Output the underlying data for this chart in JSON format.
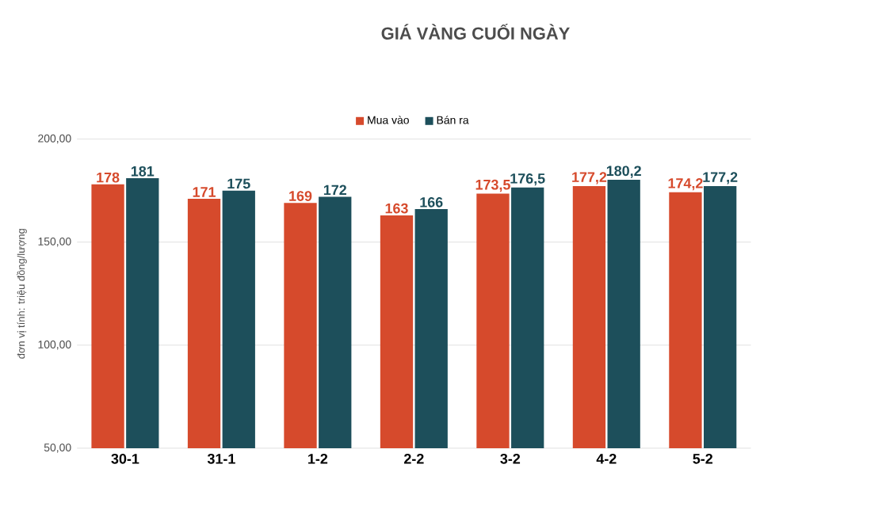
{
  "chart_data": {
    "type": "bar",
    "title": "GIÁ VÀNG CUỐI NGÀY",
    "ylabel": "đơn vị tính: triệu đồng/lượng",
    "categories": [
      "30-1",
      "31-1",
      "1-2",
      "2-2",
      "3-2",
      "4-2",
      "5-2"
    ],
    "series": [
      {
        "name": "Mua vào",
        "color": "#d64a2c",
        "values": [
          178,
          171,
          169,
          163,
          173.5,
          177.2,
          174.2
        ],
        "value_labels": [
          "178",
          "171",
          "169",
          "163",
          "173,5",
          "177,2",
          "174,2"
        ]
      },
      {
        "name": "Bán ra",
        "color": "#1d4f5b",
        "values": [
          181,
          175,
          172,
          166,
          176.5,
          180.2,
          177.2
        ],
        "value_labels": [
          "181",
          "175",
          "172",
          "166",
          "176,5",
          "180,2",
          "177,2"
        ]
      }
    ],
    "ylim": [
      50,
      200
    ],
    "yticks": [
      {
        "value": 50,
        "label": "50,00"
      },
      {
        "value": 100,
        "label": "100,00"
      },
      {
        "value": 150,
        "label": "150,00"
      },
      {
        "value": 200,
        "label": "200,00"
      }
    ],
    "grid": "y",
    "legend": "top"
  }
}
